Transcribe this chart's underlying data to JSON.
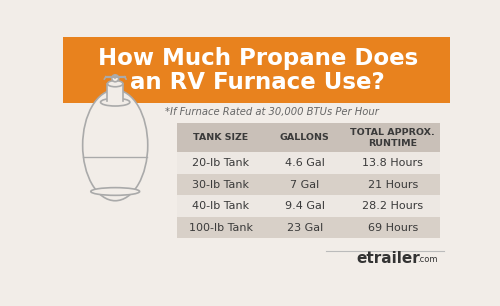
{
  "title_line1": "How Much Propane Does",
  "title_line2": "an RV Furnace Use?",
  "subtitle": "*If Furnace Rated at 30,000 BTUs Per Hour",
  "col_headers": [
    "TANK SIZE",
    "GALLONS",
    "TOTAL APPROX.\nRUNTIME"
  ],
  "rows": [
    [
      "20-lb Tank",
      "4.6 Gal",
      "13.8 Hours"
    ],
    [
      "30-lb Tank",
      "7 Gal",
      "21 Hours"
    ],
    [
      "40-lb Tank",
      "9.4 Gal",
      "28.2 Hours"
    ],
    [
      "100-lb Tank",
      "23 Gal",
      "69 Hours"
    ]
  ],
  "header_bg": "#E8821E",
  "title_color": "#FFFFFF",
  "table_header_bg": "#C9C0B8",
  "table_row_odd_bg": "#EDE8E3",
  "table_row_even_bg": "#D8D0C8",
  "table_text_color": "#3A3A3A",
  "subtitle_color": "#666666",
  "body_bg": "#F2EDE8",
  "tank_line_color": "#AAAAAA",
  "watermark_text": "etrailer",
  "watermark_com": ".com",
  "watermark_color": "#333333",
  "watermark_dot_color": "#F5C400"
}
